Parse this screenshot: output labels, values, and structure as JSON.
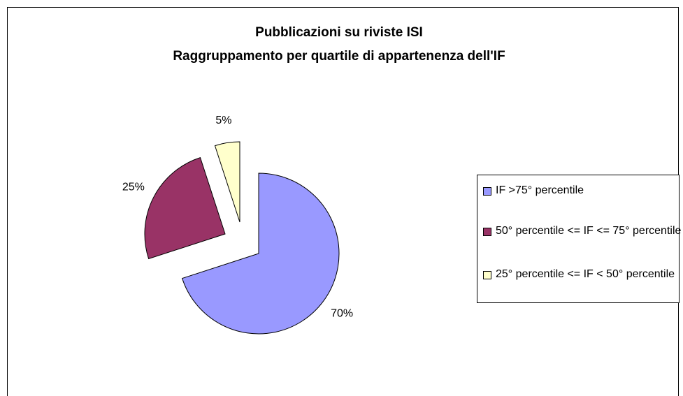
{
  "chart_data": {
    "type": "pie",
    "title": [
      "Pubblicazioni su riviste ISI",
      "Raggruppamento per quartile di appartenenza dell'IF"
    ],
    "categories": [
      "IF >75° percentile",
      "50° percentile <= IF <= 75° percentile",
      "25° percentile <= IF < 50° percentile"
    ],
    "values": [
      70,
      25,
      5
    ],
    "value_labels": [
      "70%",
      "25%",
      "5%"
    ],
    "colors": [
      "#9999ff",
      "#993366",
      "#ffffcc"
    ],
    "legend": "right"
  }
}
